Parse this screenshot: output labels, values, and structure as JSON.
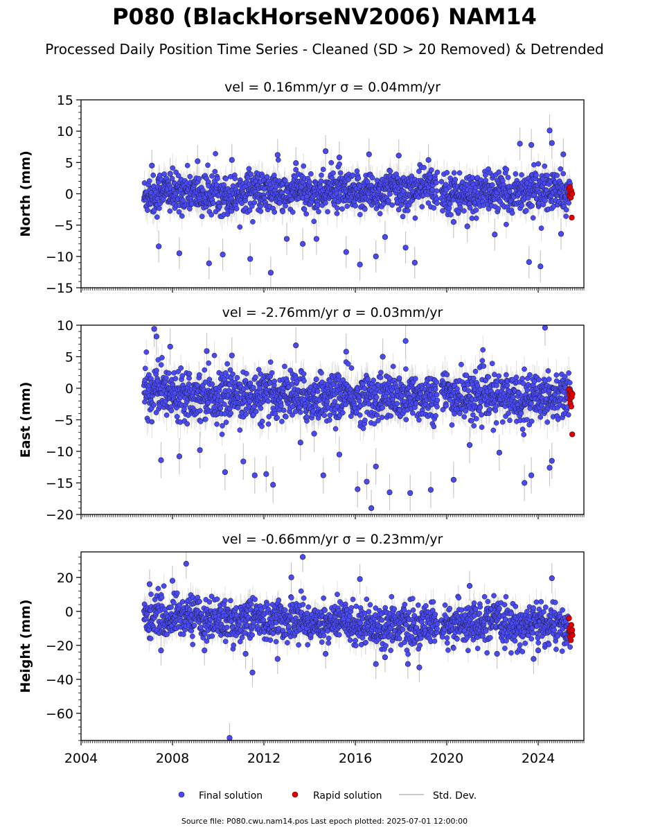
{
  "title": "P080 (BlackHorseNV2006) NAM14",
  "subtitle": "Processed Daily Position Time Series - Cleaned (SD > 20 Removed) & Detrended",
  "footer": "Source file: P080.cwu.nam14.pos  Last epoch plotted: 2025-07-01 12:00:00",
  "legend": {
    "final": "Final solution",
    "rapid": "Rapid solution",
    "std": "Std. Dev."
  },
  "colors": {
    "final_fill": "#4a4af5",
    "final_edge": "#1a1a3a",
    "rapid_fill": "#e00000",
    "error_bar": "#c8c8c8",
    "axis": "#000000"
  },
  "chart_data": [
    {
      "type": "scatter",
      "component": "north",
      "title_prefix": "vel = 0.16mm/yr",
      "title_sigma": "σ = 0.04mm/yr",
      "ylabel": "North (mm)",
      "xlim": [
        2004,
        2026
      ],
      "ylim": [
        -15,
        15
      ],
      "yticks": [
        -15,
        -10,
        -5,
        0,
        5,
        10,
        15
      ],
      "ytick_labels": [
        "−15",
        "−10",
        "−5",
        "0",
        "5",
        "10",
        "15"
      ],
      "xticks": [
        2004,
        2008,
        2012,
        2016,
        2020,
        2024
      ],
      "xtick_labels": [
        "",
        "",
        "",
        "",
        "",
        ""
      ],
      "data_span": [
        2006.75,
        2025.4
      ],
      "gap": [
        2019.6,
        2019.75
      ],
      "scatter_sd": 1.6,
      "typical_sigma": 1.6,
      "series_final_sample": {
        "x": [
          2006.8,
          2007.0,
          2007.3,
          2007.5,
          2007.8,
          2008.2,
          2008.5,
          2009.0,
          2009.5,
          2010.0,
          2010.5,
          2011.0,
          2011.5,
          2012.0,
          2012.5,
          2013.0,
          2013.5,
          2014.0,
          2014.5,
          2015.0,
          2015.5,
          2016.0,
          2016.5,
          2017.0,
          2017.5,
          2018.0,
          2018.5,
          2019.0,
          2019.5,
          2019.8,
          2020.2,
          2020.8,
          2021.5,
          2022.0,
          2022.5,
          2023.0,
          2023.5,
          2024.0,
          2024.3,
          2024.6,
          2025.0,
          2025.3
        ],
        "y": [
          -0.5,
          0.3,
          -0.8,
          1.2,
          0.2,
          -0.4,
          0.6,
          0.1,
          -0.3,
          0.5,
          -0.6,
          0.2,
          0.9,
          -0.2,
          0.4,
          -0.5,
          0.7,
          0.3,
          -0.1,
          0.8,
          0.2,
          -0.4,
          0.6,
          0.1,
          0.9,
          0.3,
          0.5,
          1.1,
          0.7,
          0.4,
          0.2,
          -0.3,
          0.1,
          0.6,
          -0.2,
          0.3,
          0.5,
          0.8,
          0.2,
          0.4,
          0.1,
          -0.2
        ]
      },
      "outliers": {
        "x": [
          2007.1,
          2007.4,
          2007.9,
          2008.3,
          2009.1,
          2009.6,
          2010.2,
          2010.6,
          2011.4,
          2012.3,
          2012.6,
          2013.0,
          2013.4,
          2013.7,
          2014.3,
          2014.7,
          2015.3,
          2015.6,
          2016.2,
          2016.6,
          2016.9,
          2017.3,
          2017.9,
          2018.2,
          2018.6,
          2019.2,
          2020.3,
          2020.9,
          2022.1,
          2023.2,
          2023.6,
          2023.7,
          2024.1,
          2024.5,
          2024.6,
          2025.0,
          2025.1
        ],
        "y": [
          4.5,
          -8.4,
          3.2,
          -9.5,
          5.2,
          -11.1,
          -9.7,
          5.4,
          -10.4,
          -12.6,
          6.2,
          -7.2,
          4.9,
          -8.0,
          -7.2,
          6.8,
          5.8,
          -9.3,
          -11.3,
          6.3,
          -10.0,
          -6.9,
          6.1,
          -8.6,
          -11.0,
          5.4,
          -4.5,
          -5.2,
          -6.5,
          8.0,
          -10.9,
          7.8,
          -11.6,
          10.1,
          8.1,
          -6.4,
          6.3
        ]
      },
      "rapid": {
        "x": [
          2025.35,
          2025.37,
          2025.39,
          2025.41,
          2025.43,
          2025.45,
          2025.47,
          2025.49
        ],
        "y": [
          0.8,
          -0.3,
          1.1,
          0.2,
          -0.6,
          0.5,
          -3.8,
          0.0
        ]
      }
    },
    {
      "type": "scatter",
      "component": "east",
      "title_prefix": "vel = -2.76mm/yr",
      "title_sigma": "σ = 0.03mm/yr",
      "ylabel": "East (mm)",
      "xlim": [
        2004,
        2026
      ],
      "ylim": [
        -20,
        10
      ],
      "yticks": [
        -20,
        -15,
        -10,
        -5,
        0,
        5,
        10
      ],
      "ytick_labels": [
        "−20",
        "−15",
        "−10",
        "−5",
        "0",
        "5",
        "10"
      ],
      "xticks": [
        2004,
        2008,
        2012,
        2016,
        2020,
        2024
      ],
      "xtick_labels": [
        "",
        "",
        "",
        "",
        "",
        ""
      ],
      "data_span": [
        2006.75,
        2025.4
      ],
      "gap": [
        2019.6,
        2019.75
      ],
      "scatter_sd": 1.9,
      "typical_sigma": 1.8,
      "series_final_sample": {
        "x": [
          2006.8,
          2007.0,
          2007.3,
          2007.5,
          2007.8,
          2008.2,
          2008.5,
          2009.0,
          2009.5,
          2010.0,
          2010.5,
          2011.0,
          2011.5,
          2012.0,
          2012.5,
          2013.0,
          2013.5,
          2014.0,
          2014.5,
          2015.0,
          2015.5,
          2016.0,
          2016.5,
          2017.0,
          2017.5,
          2018.0,
          2018.5,
          2019.0,
          2019.5,
          2019.8,
          2020.2,
          2020.8,
          2021.5,
          2022.0,
          2022.5,
          2023.0,
          2023.5,
          2024.0,
          2024.3,
          2024.6,
          2025.0,
          2025.3
        ],
        "y": [
          -0.3,
          -0.8,
          0.5,
          -0.2,
          -1.0,
          -0.6,
          -0.4,
          -1.2,
          -0.8,
          -1.5,
          -1.0,
          -0.9,
          -1.6,
          -1.1,
          -1.4,
          -0.8,
          -1.3,
          -1.7,
          -1.2,
          -1.5,
          -1.1,
          -1.8,
          -1.4,
          -1.6,
          -1.2,
          -1.9,
          -1.5,
          -1.3,
          -1.0,
          -0.8,
          -1.2,
          -1.5,
          -1.1,
          -1.6,
          -1.3,
          -1.4,
          -1.8,
          -1.2,
          -0.9,
          -1.4,
          -1.0,
          -1.3
        ]
      },
      "outliers": {
        "x": [
          2007.2,
          2007.3,
          2007.5,
          2007.9,
          2008.3,
          2009.2,
          2009.5,
          2010.3,
          2010.6,
          2011.1,
          2011.6,
          2012.1,
          2012.4,
          2013.4,
          2013.6,
          2014.2,
          2014.6,
          2015.3,
          2015.6,
          2016.1,
          2016.5,
          2016.7,
          2016.9,
          2017.2,
          2017.5,
          2018.2,
          2018.4,
          2019.3,
          2020.3,
          2021.0,
          2022.3,
          2023.4,
          2023.7,
          2024.3,
          2024.5,
          2024.6
        ],
        "y": [
          9.4,
          8.2,
          -11.4,
          6.6,
          -10.8,
          -9.8,
          5.9,
          -13.3,
          5.2,
          -11.6,
          -13.8,
          -13.6,
          -15.3,
          6.8,
          -8.6,
          -7.2,
          -13.8,
          -10.5,
          5.8,
          -16.0,
          -14.8,
          -19.0,
          -12.4,
          5.0,
          -16.5,
          7.5,
          -16.6,
          -16.1,
          -14.5,
          -9.0,
          -10.2,
          -15.0,
          -13.8,
          9.6,
          -12.6,
          -11.5
        ]
      },
      "rapid": {
        "x": [
          2025.35,
          2025.37,
          2025.39,
          2025.41,
          2025.43,
          2025.45,
          2025.47,
          2025.49,
          2025.5
        ],
        "y": [
          -0.2,
          -1.0,
          -1.8,
          -2.4,
          -0.6,
          -2.9,
          -1.4,
          -7.3,
          -0.9
        ]
      }
    },
    {
      "type": "scatter",
      "component": "height",
      "title_prefix": "vel = -0.66mm/yr",
      "title_sigma": "σ = 0.23mm/yr",
      "ylabel": "Height (mm)",
      "xlim": [
        2004,
        2026
      ],
      "ylim": [
        -76,
        35
      ],
      "yticks": [
        -60,
        -40,
        -20,
        0,
        20
      ],
      "ytick_labels": [
        "−60",
        "−40",
        "−20",
        "0",
        "20"
      ],
      "xticks": [
        2004,
        2008,
        2012,
        2016,
        2020,
        2024
      ],
      "xtick_labels": [
        "2004",
        "2008",
        "2012",
        "2016",
        "2020",
        "2024"
      ],
      "data_span": [
        2006.75,
        2025.4
      ],
      "gap": [
        2019.6,
        2019.75
      ],
      "scatter_sd": 5.8,
      "typical_sigma": 5.5,
      "series_final_sample": {
        "x": [
          2006.8,
          2007.0,
          2007.3,
          2007.5,
          2007.8,
          2008.2,
          2008.5,
          2009.0,
          2009.5,
          2010.0,
          2010.5,
          2011.0,
          2011.5,
          2012.0,
          2012.5,
          2013.0,
          2013.5,
          2014.0,
          2014.5,
          2015.0,
          2015.5,
          2016.0,
          2016.5,
          2017.0,
          2017.5,
          2018.0,
          2018.5,
          2019.0,
          2019.5,
          2019.8,
          2020.2,
          2020.8,
          2021.5,
          2022.0,
          2022.5,
          2023.0,
          2023.5,
          2024.0,
          2024.3,
          2024.6,
          2025.0,
          2025.3
        ],
        "y": [
          -2,
          -5,
          1,
          -3,
          -6,
          0,
          -4,
          -1,
          -6,
          -3,
          -8,
          -5,
          -2,
          -7,
          -4,
          -6,
          -3,
          -8,
          -5,
          -7,
          -4,
          -9,
          -6,
          -10,
          -7,
          -8,
          -11,
          -9,
          -7,
          -10,
          -8,
          -6,
          -9,
          -5,
          -7,
          -10,
          -8,
          -6,
          -9,
          -7,
          -10,
          -12
        ]
      },
      "outliers": {
        "x": [
          2007.0,
          2007.5,
          2008.0,
          2008.6,
          2009.4,
          2010.5,
          2011.2,
          2011.5,
          2012.6,
          2013.2,
          2013.7,
          2014.7,
          2016.2,
          2016.9,
          2017.3,
          2018.3,
          2018.8,
          2021.0,
          2022.2,
          2023.8,
          2024.0,
          2024.6
        ],
        "y": [
          16,
          -23,
          18,
          28,
          -23,
          -74.5,
          -25,
          -36,
          -28,
          20,
          32,
          -25,
          19,
          -31,
          -27,
          -31,
          -33,
          15,
          -25,
          -28,
          -23,
          19.5
        ]
      },
      "rapid": {
        "x": [
          2025.35,
          2025.37,
          2025.39,
          2025.41,
          2025.43,
          2025.45,
          2025.47,
          2025.49,
          2025.5
        ],
        "y": [
          -4,
          -10,
          -15,
          -12,
          -17,
          -8,
          -13,
          -11,
          -14
        ]
      }
    }
  ]
}
